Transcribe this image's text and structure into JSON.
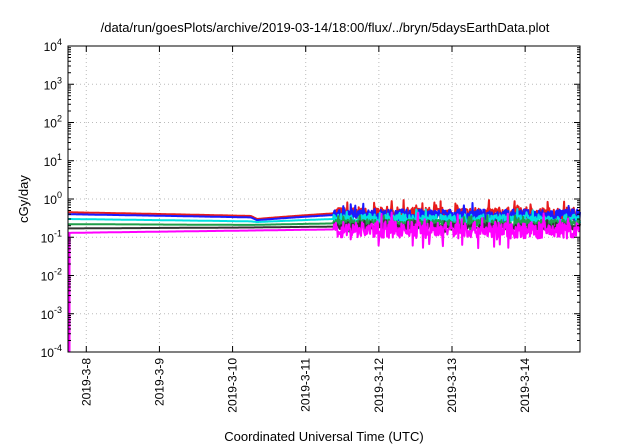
{
  "chart_data": {
    "type": "line",
    "title": "/data/run/goesPlots/archive/2019-03-14/18:00/flux/../bryn/5daysEarthData.plot",
    "xlabel": "Coordinated Universal Time (UTC)",
    "ylabel": "cGy/day",
    "yscale": "log",
    "ylim": [
      0.0001,
      10000
    ],
    "xlim": [
      "2019-03-07T18:00",
      "2019-03-14T18:00"
    ],
    "grid": true,
    "x_ticks": [
      {
        "date": "2019-03-08T00:00",
        "label": "2019-3-8"
      },
      {
        "date": "2019-03-09T00:00",
        "label": "2019-3-9"
      },
      {
        "date": "2019-03-10T00:00",
        "label": "2019-3-10"
      },
      {
        "date": "2019-03-11T00:00",
        "label": "2019-3-11"
      },
      {
        "date": "2019-03-12T00:00",
        "label": "2019-3-12"
      },
      {
        "date": "2019-03-13T00:00",
        "label": "2019-3-13"
      },
      {
        "date": "2019-03-14T00:00",
        "label": "2019-3-14"
      }
    ],
    "y_ticks": [
      {
        "value": 0.0001,
        "base": "10",
        "exp": "-4"
      },
      {
        "value": 0.001,
        "base": "10",
        "exp": "-3"
      },
      {
        "value": 0.01,
        "base": "10",
        "exp": "-2"
      },
      {
        "value": 0.1,
        "base": "10",
        "exp": "-1"
      },
      {
        "value": 1,
        "base": "10",
        "exp": "0"
      },
      {
        "value": 10,
        "base": "10",
        "exp": "1"
      },
      {
        "value": 100,
        "base": "10",
        "exp": "2"
      },
      {
        "value": 1000,
        "base": "10",
        "exp": "3"
      },
      {
        "value": 10000,
        "base": "10",
        "exp": "4"
      }
    ],
    "series": [
      {
        "color": "#e81c1c",
        "noise": 0.16,
        "points": [
          [
            "2019-03-07T18:00",
            0.45
          ],
          [
            "2019-03-10T06:00",
            0.36
          ],
          [
            "2019-03-10T08:00",
            0.3
          ],
          [
            "2019-03-11T09:00",
            0.42
          ],
          [
            "2019-03-14T18:00",
            0.42
          ]
        ]
      },
      {
        "color": "#1a1aff",
        "noise": 0.15,
        "points": [
          [
            "2019-03-07T18:00",
            0.4
          ],
          [
            "2019-03-10T06:00",
            0.33
          ],
          [
            "2019-03-10T08:00",
            0.28
          ],
          [
            "2019-03-11T09:00",
            0.38
          ],
          [
            "2019-03-14T18:00",
            0.38
          ]
        ]
      },
      {
        "color": "#00e0e0",
        "noise": 0.12,
        "points": [
          [
            "2019-03-07T18:00",
            0.3
          ],
          [
            "2019-03-10T06:00",
            0.26
          ],
          [
            "2019-03-10T08:00",
            0.25
          ],
          [
            "2019-03-11T09:00",
            0.3
          ],
          [
            "2019-03-14T18:00",
            0.3
          ]
        ]
      },
      {
        "color": "#1f9e4a",
        "noise": 0.1,
        "points": [
          [
            "2019-03-07T18:00",
            0.22
          ],
          [
            "2019-03-10T06:00",
            0.21
          ],
          [
            "2019-03-11T09:00",
            0.23
          ],
          [
            "2019-03-14T18:00",
            0.23
          ]
        ]
      },
      {
        "color": "#333333",
        "noise": 0.08,
        "points": [
          [
            "2019-03-07T18:00",
            0.17
          ],
          [
            "2019-03-10T06:00",
            0.18
          ],
          [
            "2019-03-11T09:00",
            0.19
          ],
          [
            "2019-03-14T18:00",
            0.19
          ]
        ]
      },
      {
        "color": "#ff00ff",
        "noise": 0.22,
        "start_spike": 0.0001,
        "points": [
          [
            "2019-03-07T18:00",
            0.13
          ],
          [
            "2019-03-10T06:00",
            0.15
          ],
          [
            "2019-03-11T09:00",
            0.16
          ],
          [
            "2019-03-14T18:00",
            0.15
          ]
        ]
      }
    ]
  }
}
